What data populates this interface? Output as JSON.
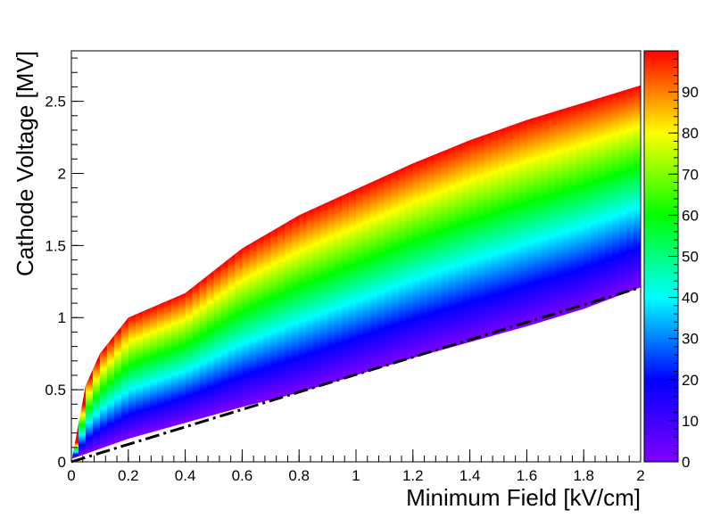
{
  "chart_data": {
    "type": "heatmap",
    "title": "",
    "xlabel": "Minimum Field [kV/cm]",
    "ylabel": "Cathode Voltage [MV]",
    "xlim": [
      0,
      2
    ],
    "ylim": [
      0,
      2.85
    ],
    "x_ticks": [
      0,
      0.2,
      0.4,
      0.6,
      0.8,
      1,
      1.2,
      1.4,
      1.6,
      1.8,
      2
    ],
    "x_tick_labels": [
      "0",
      "0.2",
      "0.4",
      "0.6",
      "0.8",
      "1",
      "1.2",
      "1.4",
      "1.6",
      "1.8",
      "2"
    ],
    "y_ticks": [
      0,
      0.5,
      1,
      1.5,
      2,
      2.5
    ],
    "y_tick_labels": [
      "0",
      "0.5",
      "1",
      "1.5",
      "2",
      "2.5"
    ],
    "z_range": [
      0,
      100
    ],
    "colorbar_ticks": [
      0,
      10,
      20,
      30,
      40,
      50,
      60,
      70,
      80,
      90
    ],
    "colorbar_tick_labels": [
      "0",
      "10",
      "20",
      "30",
      "40",
      "50",
      "60",
      "70",
      "80",
      "90"
    ],
    "colormap": "rainbow",
    "colormap_stops": [
      "#7f00ff",
      "#3f00ff",
      "#0000ff",
      "#0080ff",
      "#00ffff",
      "#00ff80",
      "#00ff00",
      "#80ff00",
      "#ffff00",
      "#ff8000",
      "#ff0000"
    ],
    "band_upper_boundary": {
      "x": [
        0,
        0.05,
        0.1,
        0.2,
        0.4,
        0.6,
        0.8,
        1.0,
        1.2,
        1.4,
        1.6,
        1.8,
        2.0
      ],
      "y": [
        0,
        0.53,
        0.75,
        1.0,
        1.17,
        1.48,
        1.71,
        1.89,
        2.07,
        2.23,
        2.37,
        2.49,
        2.61
      ]
    },
    "band_lower_boundary": {
      "x": [
        0,
        0.2,
        0.4,
        0.6,
        0.8,
        1.0,
        1.2,
        1.4,
        1.6,
        1.8,
        2.0
      ],
      "y": [
        0.02,
        0.16,
        0.27,
        0.38,
        0.48,
        0.6,
        0.72,
        0.83,
        0.94,
        1.06,
        1.21
      ]
    },
    "dash_dot_line": {
      "x": [
        0,
        2
      ],
      "y": [
        0,
        1.21
      ],
      "color": "#000000",
      "style": "dash-dot"
    },
    "grid": false,
    "legend": "colorbar-right"
  }
}
